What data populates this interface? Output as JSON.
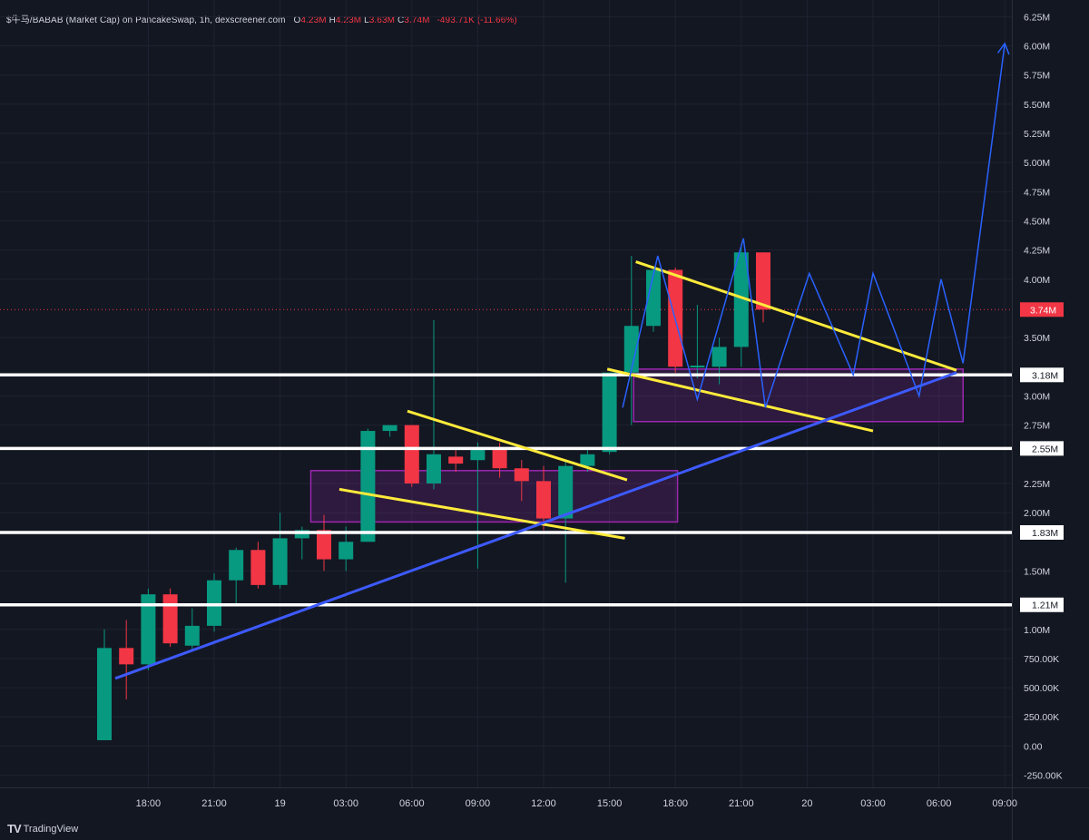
{
  "header": {
    "symbol": "$牛马/BABAB (Market Cap) on PancakeSwap, 1h, dexscreener.com",
    "open_label": "O",
    "open": "4.23M",
    "high_label": "H",
    "high": "4.23M",
    "low_label": "L",
    "low": "3.63M",
    "close_label": "C",
    "close": "3.74M",
    "change": "-493.71K (-11.66%)"
  },
  "brand": {
    "logo": "TV",
    "name": "TradingView"
  },
  "colors": {
    "background": "#131722",
    "up": "#089981",
    "down": "#f23645",
    "trendline": "#3d5afe",
    "channel": "#ffeb3b",
    "zone": "#9c27b0",
    "projection": "#2962ff",
    "level": "#ffffff"
  },
  "chart_data": {
    "type": "candlestick",
    "ylim": [
      -0.3,
      6.35
    ],
    "y_ticks": [
      {
        "v": 6.25,
        "label": "6.25M"
      },
      {
        "v": 6.0,
        "label": "6.00M"
      },
      {
        "v": 5.75,
        "label": "5.75M"
      },
      {
        "v": 5.5,
        "label": "5.50M"
      },
      {
        "v": 5.25,
        "label": "5.25M"
      },
      {
        "v": 5.0,
        "label": "5.00M"
      },
      {
        "v": 4.75,
        "label": "4.75M"
      },
      {
        "v": 4.5,
        "label": "4.50M"
      },
      {
        "v": 4.25,
        "label": "4.25M"
      },
      {
        "v": 4.0,
        "label": "4.00M"
      },
      {
        "v": 3.5,
        "label": "3.50M"
      },
      {
        "v": 3.0,
        "label": "3.00M"
      },
      {
        "v": 2.75,
        "label": "2.75M"
      },
      {
        "v": 2.25,
        "label": "2.25M"
      },
      {
        "v": 2.0,
        "label": "2.00M"
      },
      {
        "v": 1.5,
        "label": "1.50M"
      },
      {
        "v": 1.0,
        "label": "1.00M"
      },
      {
        "v": 0.75,
        "label": "750.00K"
      },
      {
        "v": 0.5,
        "label": "500.00K"
      },
      {
        "v": 0.25,
        "label": "250.00K"
      },
      {
        "v": 0.0,
        "label": "0.00"
      },
      {
        "v": -0.25,
        "label": "-250.00K"
      }
    ],
    "x_ticks": [
      {
        "t": 2,
        "label": "18:00"
      },
      {
        "t": 5,
        "label": "21:00"
      },
      {
        "t": 8,
        "label": "19"
      },
      {
        "t": 11,
        "label": "03:00"
      },
      {
        "t": 14,
        "label": "06:00"
      },
      {
        "t": 17,
        "label": "09:00"
      },
      {
        "t": 20,
        "label": "12:00"
      },
      {
        "t": 23,
        "label": "15:00"
      },
      {
        "t": 26,
        "label": "18:00"
      },
      {
        "t": 29,
        "label": "21:00"
      },
      {
        "t": 32,
        "label": "20"
      },
      {
        "t": 35,
        "label": "03:00"
      },
      {
        "t": 38,
        "label": "06:00"
      },
      {
        "t": 41,
        "label": "09:00"
      }
    ],
    "candles": [
      {
        "t": 0,
        "o": 0.05,
        "h": 1.0,
        "l": 0.05,
        "c": 0.84
      },
      {
        "t": 1,
        "o": 0.84,
        "h": 1.08,
        "l": 0.4,
        "c": 0.7
      },
      {
        "t": 2,
        "o": 0.7,
        "h": 1.35,
        "l": 0.65,
        "c": 1.3
      },
      {
        "t": 3,
        "o": 1.3,
        "h": 1.35,
        "l": 0.85,
        "c": 0.88
      },
      {
        "t": 4,
        "o": 0.86,
        "h": 1.18,
        "l": 0.83,
        "c": 1.03
      },
      {
        "t": 5,
        "o": 1.03,
        "h": 1.48,
        "l": 0.98,
        "c": 1.42
      },
      {
        "t": 6,
        "o": 1.42,
        "h": 1.7,
        "l": 1.2,
        "c": 1.68
      },
      {
        "t": 7,
        "o": 1.68,
        "h": 1.75,
        "l": 1.35,
        "c": 1.38
      },
      {
        "t": 8,
        "o": 1.38,
        "h": 2.0,
        "l": 1.35,
        "c": 1.78
      },
      {
        "t": 9,
        "o": 1.78,
        "h": 1.88,
        "l": 1.6,
        "c": 1.85
      },
      {
        "t": 10,
        "o": 1.85,
        "h": 1.98,
        "l": 1.5,
        "c": 1.6
      },
      {
        "t": 11,
        "o": 1.6,
        "h": 1.88,
        "l": 1.5,
        "c": 1.75
      },
      {
        "t": 12,
        "o": 1.75,
        "h": 2.72,
        "l": 1.75,
        "c": 2.7
      },
      {
        "t": 13,
        "o": 2.7,
        "h": 2.75,
        "l": 2.65,
        "c": 2.75
      },
      {
        "t": 14,
        "o": 2.75,
        "h": 2.75,
        "l": 2.22,
        "c": 2.25
      },
      {
        "t": 15,
        "o": 2.25,
        "h": 3.65,
        "l": 2.2,
        "c": 2.5
      },
      {
        "t": 16,
        "o": 2.48,
        "h": 2.55,
        "l": 2.35,
        "c": 2.42
      },
      {
        "t": 17,
        "o": 2.45,
        "h": 2.6,
        "l": 1.52,
        "c": 2.55
      },
      {
        "t": 18,
        "o": 2.55,
        "h": 2.6,
        "l": 2.3,
        "c": 2.38
      },
      {
        "t": 19,
        "o": 2.38,
        "h": 2.45,
        "l": 2.1,
        "c": 2.27
      },
      {
        "t": 20,
        "o": 2.27,
        "h": 2.4,
        "l": 1.85,
        "c": 1.95
      },
      {
        "t": 21,
        "o": 1.95,
        "h": 2.45,
        "l": 1.4,
        "c": 2.4
      },
      {
        "t": 22,
        "o": 2.4,
        "h": 2.55,
        "l": 2.35,
        "c": 2.5
      },
      {
        "t": 23,
        "o": 2.52,
        "h": 3.2,
        "l": 2.5,
        "c": 3.2
      },
      {
        "t": 24,
        "o": 3.2,
        "h": 4.2,
        "l": 2.75,
        "c": 3.6
      },
      {
        "t": 25,
        "o": 3.6,
        "h": 4.1,
        "l": 3.55,
        "c": 4.08
      },
      {
        "t": 26,
        "o": 4.08,
        "h": 4.1,
        "l": 3.2,
        "c": 3.25
      },
      {
        "t": 27,
        "o": 3.25,
        "h": 3.78,
        "l": 3.15,
        "c": 3.26
      },
      {
        "t": 28,
        "o": 3.25,
        "h": 3.5,
        "l": 3.1,
        "c": 3.42
      },
      {
        "t": 29,
        "o": 3.42,
        "h": 4.3,
        "l": 3.25,
        "c": 4.23
      },
      {
        "t": 30,
        "o": 4.23,
        "h": 4.23,
        "l": 3.63,
        "c": 3.74
      }
    ],
    "levels": [
      {
        "v": 3.18,
        "label": "3.18M"
      },
      {
        "v": 2.55,
        "label": "2.55M"
      },
      {
        "v": 1.83,
        "label": "1.83M"
      },
      {
        "v": 1.21,
        "label": "1.21M"
      }
    ],
    "current_price": {
      "v": 3.74,
      "label": "3.74M"
    },
    "zones": [
      {
        "t0": 9.4,
        "t1": 26.1,
        "v0": 1.92,
        "v1": 2.36
      },
      {
        "t0": 24.1,
        "t1": 39.1,
        "v0": 2.78,
        "v1": 3.23
      }
    ],
    "trendline": [
      {
        "t": 0.5,
        "v": 0.58
      },
      {
        "t": 38.8,
        "v": 3.2
      }
    ],
    "channels": [
      {
        "p1": {
          "t": 13.8,
          "v": 2.87
        },
        "p2": {
          "t": 23.8,
          "v": 2.28
        }
      },
      {
        "p1": {
          "t": 10.7,
          "v": 2.2
        },
        "p2": {
          "t": 23.7,
          "v": 1.78
        }
      },
      {
        "p1": {
          "t": 24.2,
          "v": 4.15
        },
        "p2": {
          "t": 38.8,
          "v": 3.22
        }
      },
      {
        "p1": {
          "t": 22.9,
          "v": 3.23
        },
        "p2": {
          "t": 35.0,
          "v": 2.7
        }
      }
    ],
    "projection": [
      {
        "t": 23.6,
        "v": 2.9
      },
      {
        "t": 25.2,
        "v": 4.2
      },
      {
        "t": 27.0,
        "v": 2.97
      },
      {
        "t": 29.1,
        "v": 4.35
      },
      {
        "t": 30.1,
        "v": 2.9
      },
      {
        "t": 32.1,
        "v": 4.05
      },
      {
        "t": 34.1,
        "v": 3.18
      },
      {
        "t": 35.0,
        "v": 4.05
      },
      {
        "t": 37.1,
        "v": 3.0
      },
      {
        "t": 38.1,
        "v": 4.0
      },
      {
        "t": 39.1,
        "v": 3.28
      },
      {
        "t": 41.0,
        "v": 6.02
      }
    ]
  }
}
